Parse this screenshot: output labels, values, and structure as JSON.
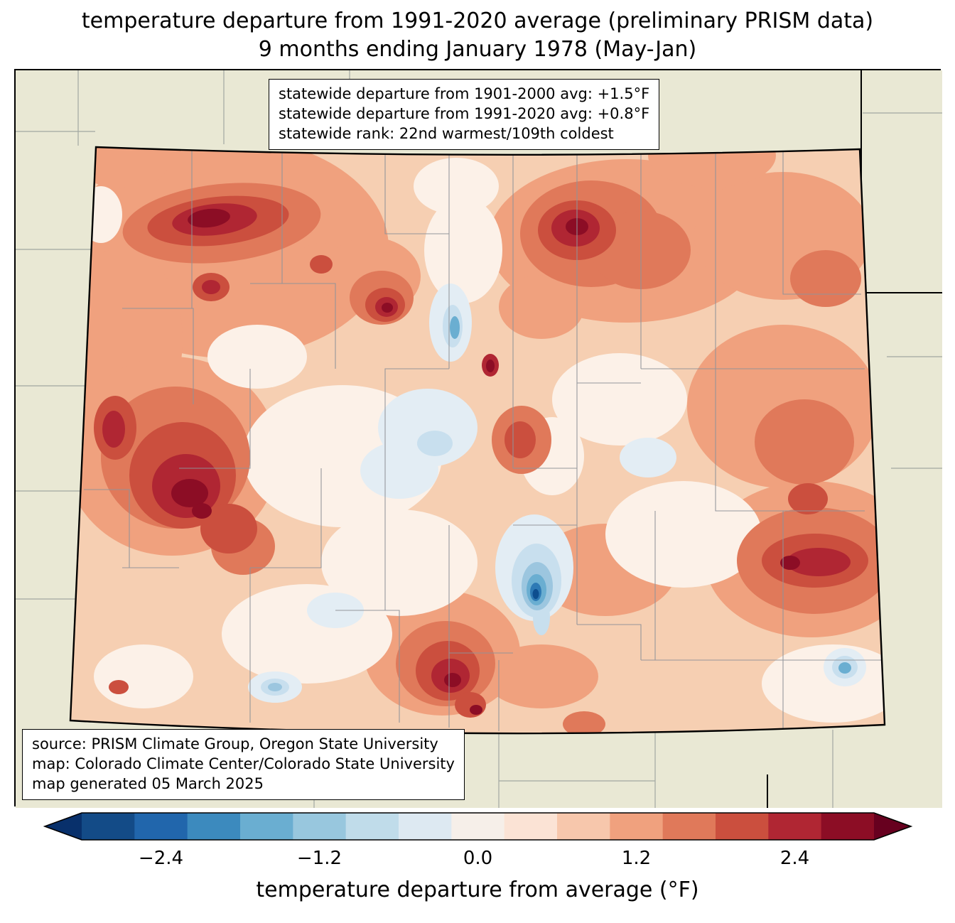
{
  "title": {
    "line1": "temperature departure from 1991-2020 average (preliminary PRISM data)",
    "line2": "9 months ending January 1978 (May-Jan)"
  },
  "stats_box": {
    "lines": [
      "statewide departure from 1901-2000 avg: +1.5°F",
      "statewide departure from 1991-2020 avg: +0.8°F",
      "statewide rank: 22nd warmest/109th coldest"
    ]
  },
  "source_box": {
    "lines": [
      "source: PRISM Climate Group, Oregon State University",
      "map: Colorado Climate Center/Colorado State University",
      "map generated 05 March 2025"
    ]
  },
  "map": {
    "region": "Colorado",
    "outside_fill": "#e9e8d4",
    "state_base_fill": "#f6cfb2",
    "county_line_color": "#909399",
    "state_border_color": "#000000"
  },
  "colorbar": {
    "label": "temperature departure from average (°F)",
    "arrow_left_color": "#08306b",
    "arrow_right_color": "#67001f",
    "segment_colors": [
      "#134b87",
      "#2166ac",
      "#3c8abe",
      "#6aaed1",
      "#98c7de",
      "#c0dcea",
      "#dde9f2",
      "#f6efe9",
      "#fbe3d5",
      "#f7c7ac",
      "#f0a17e",
      "#e0795a",
      "#cb4f3e",
      "#b02633",
      "#8c0d25"
    ],
    "ticks": [
      {
        "value": "−2.4",
        "frac": 0.1
      },
      {
        "value": "−1.2",
        "frac": 0.3
      },
      {
        "value": "0.0",
        "frac": 0.5
      },
      {
        "value": "1.2",
        "frac": 0.7
      },
      {
        "value": "2.4",
        "frac": 0.9
      }
    ]
  }
}
